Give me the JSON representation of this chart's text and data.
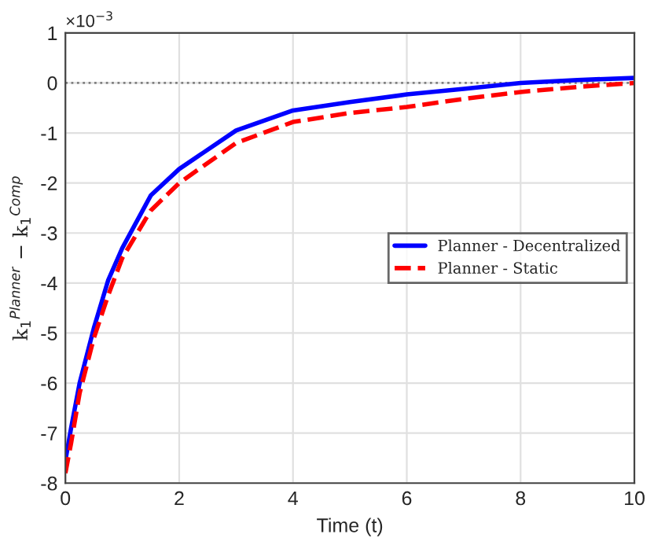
{
  "chart_data": {
    "type": "line",
    "xlabel": "Time (t)",
    "ylabel": "k$_{1}$$^{Planner}$ − k$_{1}$$^{Comp}$",
    "x": [
      0,
      0.1,
      0.25,
      0.5,
      0.75,
      1,
      1.5,
      2,
      3,
      4,
      5,
      6,
      7,
      8,
      9,
      10
    ],
    "series": [
      {
        "name": "Planner - Decentralized",
        "color": "#0000ff",
        "line_style": "solid",
        "values": [
          -7.55,
          -6.9,
          -6.0,
          -4.9,
          -3.95,
          -3.3,
          -2.25,
          -1.72,
          -0.95,
          -0.55,
          -0.38,
          -0.23,
          -0.12,
          0.0,
          0.06,
          0.1
        ]
      },
      {
        "name": "Planner - Static",
        "color": "#ff0000",
        "line_style": "dashed",
        "values": [
          -7.8,
          -7.2,
          -6.2,
          -5.1,
          -4.25,
          -3.5,
          -2.55,
          -2.0,
          -1.2,
          -0.78,
          -0.6,
          -0.48,
          -0.32,
          -0.18,
          -0.08,
          0.0
        ]
      }
    ],
    "xlim": [
      0,
      10
    ],
    "xticks": [
      0,
      2,
      4,
      6,
      8,
      10
    ],
    "ylim": [
      -8,
      1
    ],
    "yticks": [
      -8,
      -7,
      -6,
      -5,
      -4,
      -3,
      -2,
      -1,
      0,
      1
    ],
    "ref_lines": [
      {
        "axis": "y",
        "value": 0,
        "color": "#808080",
        "line_style": "dotted"
      }
    ],
    "annotations": [
      "×10$^{−3}$"
    ],
    "grid": true,
    "legend": "right"
  }
}
